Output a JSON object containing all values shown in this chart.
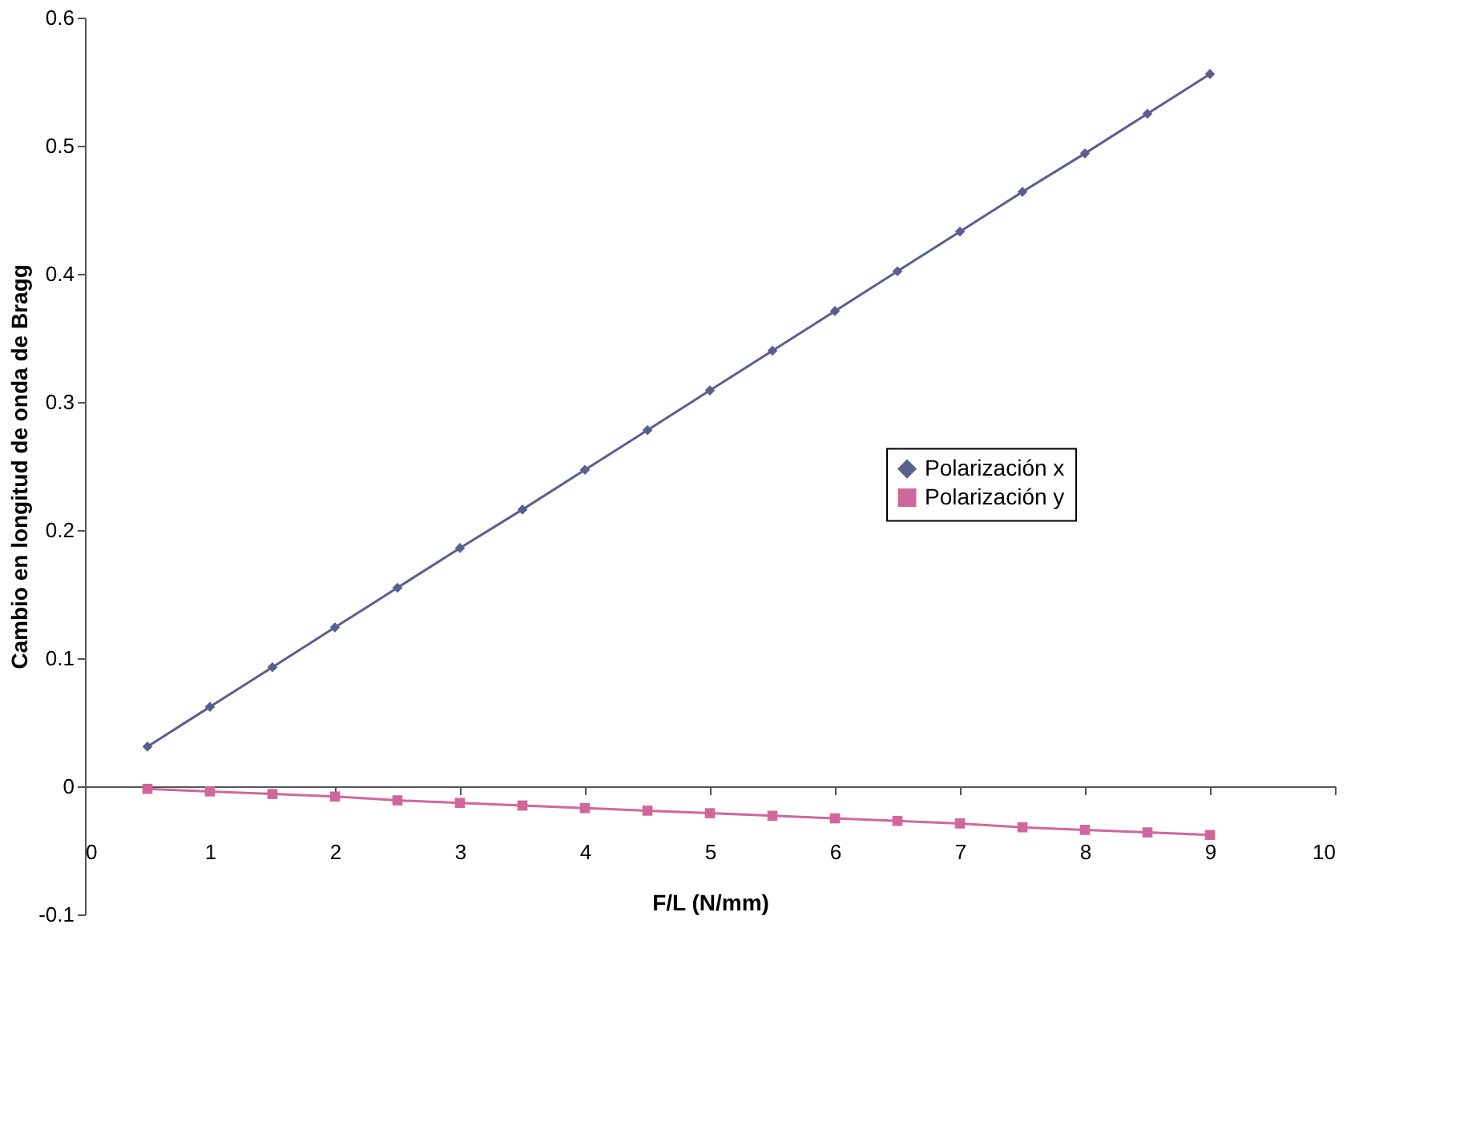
{
  "chart_data": {
    "type": "line",
    "xlabel": "F/L (N/mm)",
    "ylabel": "Cambio en longitud de onda de Bragg",
    "x": [
      0.5,
      1,
      1.5,
      2,
      2.5,
      3,
      3.5,
      4,
      4.5,
      5,
      5.5,
      6,
      6.5,
      7,
      7.5,
      8,
      8.5,
      9
    ],
    "series": [
      {
        "name": "Polarización x",
        "color": "#5a5f8f",
        "marker": "diamond",
        "values": [
          0.031,
          0.062,
          0.093,
          0.124,
          0.155,
          0.186,
          0.216,
          0.247,
          0.278,
          0.309,
          0.34,
          0.371,
          0.402,
          0.433,
          0.464,
          0.494,
          0.525,
          0.556
        ]
      },
      {
        "name": "Polarización y",
        "color": "#d0679a",
        "marker": "square",
        "values": [
          -0.002,
          -0.004,
          -0.006,
          -0.008,
          -0.011,
          -0.013,
          -0.015,
          -0.017,
          -0.019,
          -0.021,
          -0.023,
          -0.025,
          -0.027,
          -0.029,
          -0.032,
          -0.034,
          -0.036,
          -0.038
        ]
      }
    ],
    "xlim": [
      0,
      10
    ],
    "xticks": [
      0,
      1,
      2,
      3,
      4,
      5,
      6,
      7,
      8,
      9,
      10
    ],
    "ylim": [
      -0.1,
      0.6
    ],
    "yticks": [
      -0.1,
      0,
      0.1,
      0.2,
      0.3,
      0.4,
      0.5,
      0.6
    ],
    "grid": false,
    "legend": "right",
    "line_style": "solid"
  }
}
